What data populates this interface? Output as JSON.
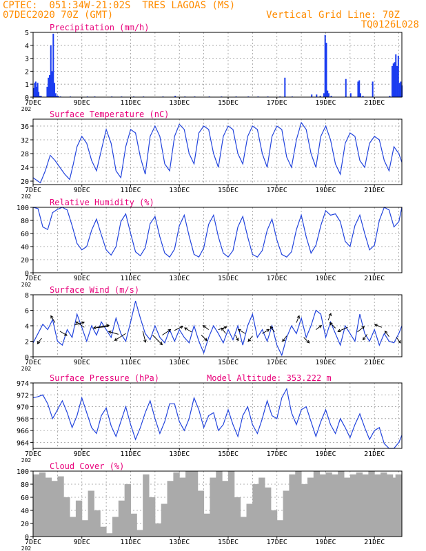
{
  "header": {
    "line1_left": "CPTEC:  051:34W-21:02S  TRES LAGOAS (MS)",
    "line2_left": "07DEC2020 70Z (GMT)",
    "line2_right": "Vertical Grid Line: 70Z",
    "line3_right": "TQ0126L028",
    "year_stub": "202"
  },
  "colors": {
    "header": "#ff8c00",
    "title": "#e8007a",
    "line": "#2244dd",
    "bar": "#1a3cf0",
    "cloud": "#aaaaaa",
    "arrow": "#000000",
    "grid": "#999999"
  },
  "x_ticks": [
    "7DEC",
    "9DEC",
    "11DEC",
    "13DEC",
    "15DEC",
    "17DEC",
    "19DEC",
    "21DEC"
  ],
  "x_range_days": [
    7,
    22.125
  ],
  "chart_data": [
    {
      "type": "bar",
      "title": "Precipitation (mm/h)",
      "ylim": [
        0,
        5
      ],
      "yticks": [
        0,
        1,
        2,
        3,
        4,
        5
      ],
      "grid": true,
      "x": [
        7.0,
        7.04,
        7.08,
        7.12,
        7.16,
        7.2,
        7.25,
        7.3,
        7.55,
        7.6,
        7.65,
        7.7,
        7.75,
        7.8,
        7.85,
        7.9,
        7.95,
        8.0,
        8.1,
        8.5,
        9.2,
        9.5,
        10.2,
        10.6,
        11.1,
        11.5,
        12.3,
        12.8,
        13.2,
        13.6,
        14.2,
        14.7,
        15.3,
        15.8,
        16.2,
        16.6,
        17.1,
        17.3,
        17.6,
        18.4,
        18.6,
        18.75,
        18.9,
        18.95,
        19.0,
        19.05,
        19.1,
        19.2,
        19.8,
        20.0,
        20.3,
        20.35,
        20.4,
        20.5,
        20.9,
        21.6,
        21.7,
        21.75,
        21.8,
        21.85,
        21.9,
        21.95,
        22.0,
        22.05,
        22.1
      ],
      "values": [
        0.7,
        1.1,
        1.2,
        0.8,
        1.1,
        0.4,
        0.1,
        0.1,
        0.8,
        1.5,
        1.7,
        4.0,
        2.0,
        4.9,
        1.1,
        0.3,
        0.1,
        0.1,
        0.05,
        0.05,
        0.05,
        0.05,
        0.05,
        0.05,
        0.05,
        0.05,
        0.05,
        0.1,
        0.05,
        0.05,
        0.05,
        0.05,
        0.05,
        0.05,
        0.05,
        0.05,
        0.05,
        1.5,
        0.05,
        0.2,
        0.2,
        0.1,
        0.3,
        4.8,
        4.2,
        0.5,
        0.3,
        0.1,
        1.4,
        0.3,
        1.2,
        1.3,
        0.3,
        0.1,
        1.2,
        0.1,
        2.4,
        2.6,
        2.7,
        3.3,
        2.4,
        3.2,
        1.1,
        1.2,
        0.9
      ]
    },
    {
      "type": "line",
      "title": "Surface Temperature (nC)",
      "ylim": [
        19,
        38
      ],
      "yticks": [
        20,
        24,
        28,
        32,
        36
      ],
      "grid": true,
      "x": [
        7.0,
        7.3,
        7.5,
        7.7,
        7.9,
        8.1,
        8.3,
        8.5,
        8.65,
        8.8,
        9.0,
        9.2,
        9.4,
        9.6,
        9.8,
        10.0,
        10.2,
        10.4,
        10.6,
        10.8,
        11.0,
        11.2,
        11.4,
        11.6,
        11.8,
        12.0,
        12.2,
        12.4,
        12.6,
        12.8,
        13.0,
        13.2,
        13.4,
        13.6,
        13.8,
        14.0,
        14.2,
        14.4,
        14.6,
        14.8,
        15.0,
        15.2,
        15.4,
        15.6,
        15.8,
        16.0,
        16.2,
        16.4,
        16.6,
        16.8,
        17.0,
        17.2,
        17.4,
        17.6,
        17.8,
        18.0,
        18.2,
        18.4,
        18.6,
        18.8,
        19.0,
        19.2,
        19.4,
        19.6,
        19.8,
        20.0,
        20.2,
        20.4,
        20.6,
        20.8,
        21.0,
        21.2,
        21.4,
        21.6,
        21.8,
        22.0,
        22.125
      ],
      "values": [
        21,
        19.5,
        23,
        27.5,
        26,
        24,
        22,
        20.5,
        25,
        30,
        33,
        31,
        26,
        23,
        29,
        35,
        31,
        23,
        21,
        30,
        35,
        34,
        27,
        22,
        33,
        36,
        33,
        25,
        23,
        33,
        36.5,
        35,
        28,
        25,
        34,
        36,
        35,
        28,
        24,
        33,
        36,
        35,
        28,
        25,
        33,
        36,
        35,
        28,
        24,
        33,
        36,
        35,
        27,
        24,
        32,
        37,
        35,
        28,
        24,
        33,
        36,
        32,
        25,
        22,
        31,
        34,
        33,
        26,
        24,
        31,
        33,
        32,
        26,
        23,
        30,
        28,
        25.5
      ]
    },
    {
      "type": "line",
      "title": "Relative Humidity (%)",
      "ylim": [
        0,
        100
      ],
      "yticks": [
        0,
        20,
        40,
        60,
        80,
        100
      ],
      "grid": true,
      "x": [
        7.0,
        7.2,
        7.4,
        7.6,
        7.8,
        8.0,
        8.2,
        8.4,
        8.6,
        8.8,
        9.0,
        9.2,
        9.4,
        9.6,
        9.8,
        10.0,
        10.2,
        10.4,
        10.6,
        10.8,
        11.0,
        11.2,
        11.4,
        11.6,
        11.8,
        12.0,
        12.2,
        12.4,
        12.6,
        12.8,
        13.0,
        13.2,
        13.4,
        13.6,
        13.8,
        14.0,
        14.2,
        14.4,
        14.6,
        14.8,
        15.0,
        15.2,
        15.4,
        15.6,
        15.8,
        16.0,
        16.2,
        16.4,
        16.6,
        16.8,
        17.0,
        17.2,
        17.4,
        17.6,
        17.8,
        18.0,
        18.2,
        18.4,
        18.6,
        18.8,
        19.0,
        19.2,
        19.4,
        19.6,
        19.8,
        20.0,
        20.2,
        20.4,
        20.6,
        20.8,
        21.0,
        21.2,
        21.4,
        21.6,
        21.8,
        22.0,
        22.125
      ],
      "values": [
        100,
        98,
        70,
        66,
        92,
        97,
        100,
        96,
        72,
        45,
        35,
        40,
        65,
        82,
        58,
        35,
        27,
        40,
        78,
        90,
        60,
        32,
        26,
        38,
        75,
        86,
        55,
        30,
        24,
        36,
        72,
        88,
        56,
        28,
        24,
        38,
        74,
        88,
        55,
        30,
        24,
        34,
        70,
        86,
        55,
        28,
        24,
        34,
        65,
        82,
        50,
        28,
        24,
        32,
        66,
        88,
        55,
        30,
        42,
        72,
        95,
        88,
        90,
        78,
        48,
        40,
        72,
        88,
        60,
        35,
        42,
        80,
        100,
        96,
        70,
        78,
        100
      ]
    },
    {
      "type": "line",
      "title": "Surface Wind (m/s)",
      "ylim": [
        0,
        8
      ],
      "yticks": [
        0,
        2,
        4,
        6,
        8
      ],
      "grid": true,
      "x": [
        7.0,
        7.2,
        7.4,
        7.6,
        7.8,
        8.0,
        8.2,
        8.4,
        8.6,
        8.8,
        9.0,
        9.2,
        9.4,
        9.6,
        9.8,
        10.0,
        10.2,
        10.4,
        10.6,
        10.8,
        11.0,
        11.2,
        11.4,
        11.6,
        11.8,
        12.0,
        12.2,
        12.4,
        12.6,
        12.8,
        13.0,
        13.2,
        13.4,
        13.6,
        13.8,
        14.0,
        14.2,
        14.4,
        14.6,
        14.8,
        15.0,
        15.2,
        15.4,
        15.6,
        15.8,
        16.0,
        16.2,
        16.4,
        16.6,
        16.8,
        17.0,
        17.2,
        17.4,
        17.6,
        17.8,
        18.0,
        18.2,
        18.4,
        18.6,
        18.8,
        19.0,
        19.2,
        19.4,
        19.6,
        19.8,
        20.0,
        20.2,
        20.4,
        20.6,
        20.8,
        21.0,
        21.2,
        21.4,
        21.6,
        21.8,
        22.0,
        22.125
      ],
      "values": [
        1.8,
        3.0,
        4.2,
        3.5,
        4.8,
        2.0,
        1.5,
        3.5,
        2.5,
        5.5,
        3.8,
        2.0,
        4.0,
        2.8,
        4.5,
        3.5,
        2.5,
        5.0,
        3.0,
        2.0,
        4.5,
        7.2,
        5.0,
        3.0,
        2.2,
        4.0,
        2.5,
        1.8,
        3.5,
        2.0,
        3.5,
        2.5,
        1.8,
        4.0,
        2.0,
        0.5,
        2.5,
        4.0,
        3.0,
        1.8,
        3.5,
        2.2,
        4.0,
        1.5,
        4.0,
        5.5,
        2.5,
        3.5,
        2.0,
        4.0,
        1.5,
        0.2,
        2.5,
        4.0,
        3.0,
        5.0,
        2.5,
        4.0,
        6.0,
        5.5,
        2.5,
        4.5,
        3.0,
        1.5,
        4.0,
        3.0,
        2.0,
        5.5,
        3.0,
        2.0,
        3.5,
        1.5,
        3.0,
        2.0,
        1.8,
        3.0,
        4.0
      ],
      "arrows": [
        {
          "x": 7.35,
          "y": 2.4,
          "dx": -6,
          "dy": 8
        },
        {
          "x": 7.9,
          "y": 4.4,
          "dx": -6,
          "dy": -10
        },
        {
          "x": 8.1,
          "y": 3.3,
          "dx": 10,
          "dy": 6
        },
        {
          "x": 8.7,
          "y": 4.1,
          "dx": 14,
          "dy": -4
        },
        {
          "x": 9.1,
          "y": 3.8,
          "dx": -12,
          "dy": -8
        },
        {
          "x": 9.6,
          "y": 3.8,
          "dx": 18,
          "dy": -3
        },
        {
          "x": 10.1,
          "y": 3.9,
          "dx": -22,
          "dy": 2
        },
        {
          "x": 10.5,
          "y": 2.9,
          "dx": -14,
          "dy": -4
        },
        {
          "x": 10.8,
          "y": 3.0,
          "dx": -16,
          "dy": 10
        },
        {
          "x": 11.5,
          "y": 3.3,
          "dx": 4,
          "dy": 16
        },
        {
          "x": 11.9,
          "y": 2.8,
          "dx": 14,
          "dy": 14
        },
        {
          "x": 12.3,
          "y": 2.8,
          "dx": 12,
          "dy": -8
        },
        {
          "x": 12.8,
          "y": 3.4,
          "dx": 12,
          "dy": -6
        },
        {
          "x": 13.5,
          "y": 3.2,
          "dx": -10,
          "dy": -6
        },
        {
          "x": 13.9,
          "y": 2.8,
          "dx": 8,
          "dy": 8
        },
        {
          "x": 14.2,
          "y": 3.5,
          "dx": -8,
          "dy": -6
        },
        {
          "x": 14.6,
          "y": 3.5,
          "dx": 12,
          "dy": -4
        },
        {
          "x": 14.9,
          "y": 3.0,
          "dx": -6,
          "dy": -8
        },
        {
          "x": 15.3,
          "y": 2.8,
          "dx": 4,
          "dy": 8
        },
        {
          "x": 15.7,
          "y": 3.0,
          "dx": -10,
          "dy": -6
        },
        {
          "x": 16.0,
          "y": 2.7,
          "dx": -6,
          "dy": 8
        },
        {
          "x": 16.4,
          "y": 3.0,
          "dx": 10,
          "dy": -6
        },
        {
          "x": 16.9,
          "y": 3.2,
          "dx": -6,
          "dy": -8
        },
        {
          "x": 17.4,
          "y": 2.7,
          "dx": -6,
          "dy": 8
        },
        {
          "x": 17.8,
          "y": 4.4,
          "dx": 4,
          "dy": -10
        },
        {
          "x": 18.1,
          "y": 2.5,
          "dx": 8,
          "dy": 8
        },
        {
          "x": 18.6,
          "y": 3.5,
          "dx": 8,
          "dy": -6
        },
        {
          "x": 19.1,
          "y": 4.7,
          "dx": 4,
          "dy": -10
        },
        {
          "x": 19.4,
          "y": 3.7,
          "dx": -8,
          "dy": -8
        },
        {
          "x": 19.9,
          "y": 3.8,
          "dx": -14,
          "dy": 6
        },
        {
          "x": 20.3,
          "y": 3.2,
          "dx": 10,
          "dy": -8
        },
        {
          "x": 20.7,
          "y": 2.9,
          "dx": -6,
          "dy": 8
        },
        {
          "x": 21.3,
          "y": 3.8,
          "dx": -10,
          "dy": -4
        },
        {
          "x": 21.6,
          "y": 2.6,
          "dx": -6,
          "dy": -8
        },
        {
          "x": 21.9,
          "y": 2.5,
          "dx": 6,
          "dy": 8
        }
      ]
    },
    {
      "type": "line",
      "title": "Surface Pressure (hPa)",
      "subtitle": "Model Altitude: 353.222 m",
      "ylim": [
        963,
        974
      ],
      "yticks": [
        964,
        966,
        968,
        970,
        972,
        974
      ],
      "grid": true,
      "x": [
        7.0,
        7.2,
        7.4,
        7.6,
        7.8,
        8.0,
        8.2,
        8.4,
        8.6,
        8.8,
        9.0,
        9.2,
        9.4,
        9.6,
        9.8,
        10.0,
        10.2,
        10.4,
        10.6,
        10.8,
        11.0,
        11.2,
        11.4,
        11.6,
        11.8,
        12.0,
        12.2,
        12.4,
        12.6,
        12.8,
        13.0,
        13.2,
        13.4,
        13.6,
        13.8,
        14.0,
        14.2,
        14.4,
        14.6,
        14.8,
        15.0,
        15.2,
        15.4,
        15.6,
        15.8,
        16.0,
        16.2,
        16.4,
        16.6,
        16.8,
        17.0,
        17.2,
        17.4,
        17.6,
        17.8,
        18.0,
        18.2,
        18.4,
        18.6,
        18.8,
        19.0,
        19.2,
        19.4,
        19.6,
        19.8,
        20.0,
        20.2,
        20.4,
        20.6,
        20.8,
        21.0,
        21.2,
        21.4,
        21.6,
        21.8,
        22.0,
        22.125
      ],
      "values": [
        971.5,
        971.7,
        972.0,
        970.5,
        968.0,
        969.5,
        971.0,
        969.0,
        966.5,
        968.5,
        971.5,
        969.0,
        966.5,
        965.5,
        968.5,
        969.8,
        966.8,
        965.0,
        967.5,
        970.0,
        967.0,
        964.5,
        966.5,
        969.0,
        971.0,
        968.0,
        965.5,
        967.5,
        970.5,
        970.5,
        967.5,
        966.0,
        968.0,
        971.5,
        969.5,
        966.5,
        968.5,
        969.0,
        966.0,
        967.0,
        969.5,
        967.0,
        965.0,
        968.5,
        970.0,
        967.0,
        965.5,
        968.0,
        971.0,
        968.5,
        968.0,
        971.5,
        973.0,
        969.0,
        967.0,
        969.5,
        970.0,
        967.5,
        965.0,
        967.5,
        969.5,
        967.0,
        965.5,
        968.0,
        966.5,
        964.8,
        967.0,
        968.8,
        966.5,
        964.5,
        966.0,
        966.5,
        963.8,
        962.5,
        963.0,
        964.0,
        965.2
      ]
    },
    {
      "type": "bar",
      "title": "Cloud Cover (%)",
      "ylim": [
        0,
        100
      ],
      "yticks": [
        0,
        20,
        40,
        60,
        80,
        100
      ],
      "grid": true,
      "x": [
        7.0,
        7.25,
        7.5,
        7.75,
        8.0,
        8.25,
        8.5,
        8.75,
        9.0,
        9.25,
        9.5,
        9.75,
        10.0,
        10.25,
        10.5,
        10.75,
        11.0,
        11.25,
        11.5,
        11.75,
        12.0,
        12.25,
        12.5,
        12.75,
        13.0,
        13.25,
        13.5,
        13.75,
        14.0,
        14.25,
        14.5,
        14.75,
        15.0,
        15.25,
        15.5,
        15.75,
        16.0,
        16.25,
        16.5,
        16.75,
        17.0,
        17.25,
        17.5,
        17.75,
        18.0,
        18.25,
        18.5,
        18.75,
        19.0,
        19.25,
        19.5,
        19.75,
        20.0,
        20.25,
        20.5,
        20.75,
        21.0,
        21.25,
        21.5,
        21.75,
        22.0
      ],
      "values": [
        95,
        98,
        90,
        85,
        92,
        60,
        30,
        55,
        25,
        70,
        40,
        15,
        5,
        30,
        55,
        80,
        35,
        10,
        95,
        60,
        20,
        50,
        85,
        98,
        90,
        100,
        100,
        70,
        35,
        90,
        100,
        85,
        100,
        60,
        30,
        50,
        80,
        90,
        75,
        40,
        25,
        70,
        95,
        100,
        80,
        90,
        100,
        95,
        98,
        95,
        100,
        90,
        95,
        98,
        95,
        100,
        95,
        98,
        95,
        90,
        95
      ]
    }
  ]
}
